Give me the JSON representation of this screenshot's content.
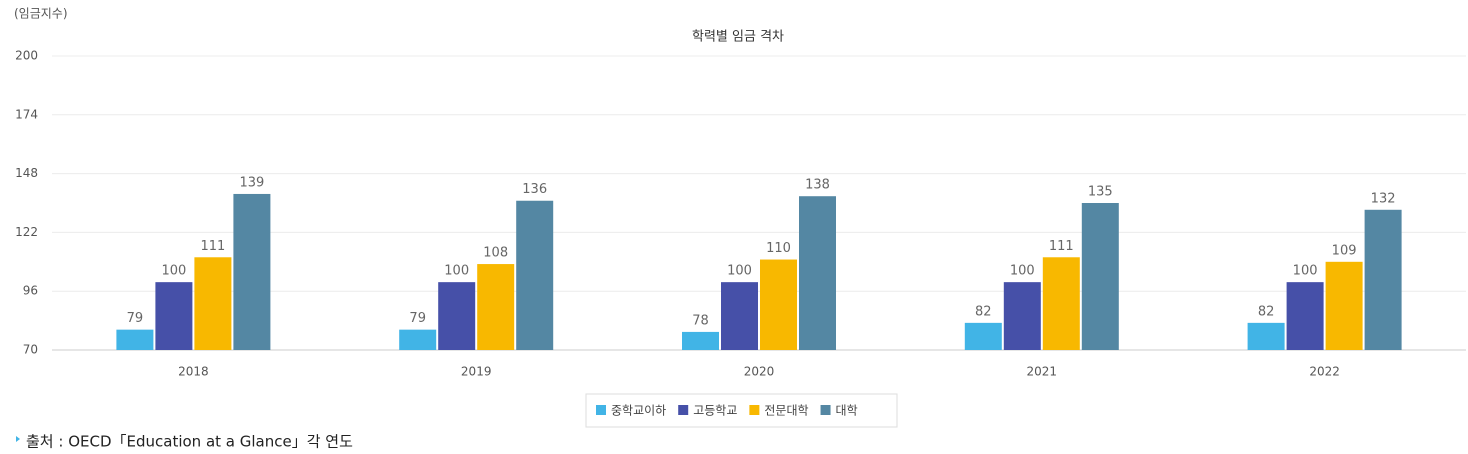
{
  "chart_data": {
    "type": "bar",
    "title": "학력별 임금 격차",
    "y_unit": "(임금지수)",
    "categories": [
      "2018",
      "2019",
      "2020",
      "2021",
      "2022"
    ],
    "series": [
      {
        "name": "중학교이하",
        "color": "#41b4e6",
        "values": [
          79,
          79,
          78,
          82,
          82
        ]
      },
      {
        "name": "고등학교",
        "color": "#4650a8",
        "values": [
          100,
          100,
          100,
          100,
          100
        ]
      },
      {
        "name": "전문대학",
        "color": "#f8b800",
        "values": [
          111,
          108,
          110,
          111,
          109
        ]
      },
      {
        "name": "대학",
        "color": "#5487a3",
        "values": [
          139,
          136,
          138,
          135,
          132
        ]
      }
    ],
    "ylim": [
      70,
      200
    ],
    "yticks": [
      70,
      96,
      122,
      148,
      174,
      200
    ],
    "grid": true,
    "legend": "bottom",
    "source": "출처 : OECD「Education at a Glance」각 연도"
  }
}
